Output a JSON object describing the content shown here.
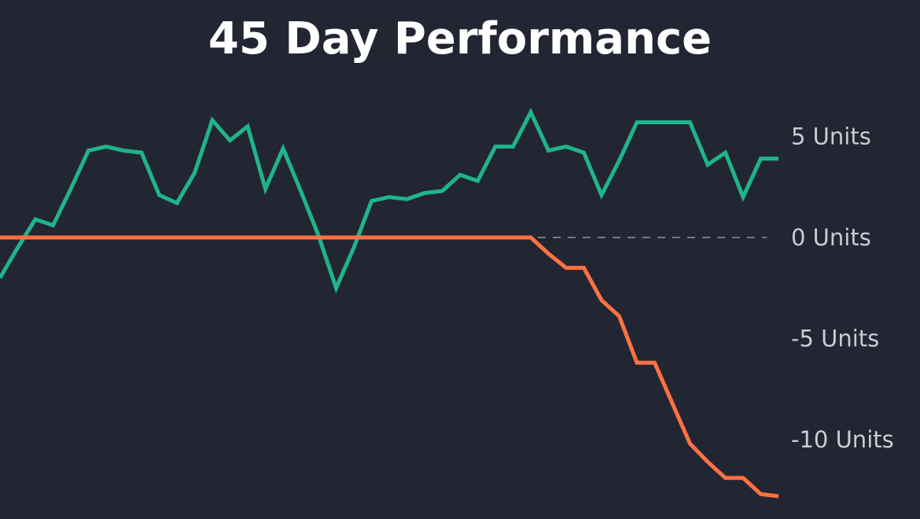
{
  "chart_data": {
    "type": "line",
    "title": "45 Day Performance",
    "xlabel": "",
    "ylabel": "",
    "xlim": [
      1,
      45
    ],
    "ylim": [
      -12.5,
      6.5
    ],
    "y_ticks": [
      {
        "value": 5,
        "label": "5 Units"
      },
      {
        "value": 0,
        "label": "0 Units"
      },
      {
        "value": -5,
        "label": "-5 Units"
      },
      {
        "value": -10,
        "label": "-10 Units"
      }
    ],
    "reference_line": {
      "y": 0,
      "style": "dashed"
    },
    "grid": false,
    "legend": "none",
    "x": [
      1,
      2,
      3,
      4,
      5,
      6,
      7,
      8,
      9,
      10,
      11,
      12,
      13,
      14,
      15,
      16,
      17,
      18,
      19,
      20,
      21,
      22,
      23,
      24,
      25,
      26,
      27,
      28,
      29,
      30,
      31,
      32,
      33,
      34,
      35,
      36,
      37,
      38,
      39,
      40,
      41,
      42,
      43,
      44,
      45
    ],
    "series": [
      {
        "color": "#20b38c",
        "values": [
          -2.0,
          -0.5,
          0.9,
          0.6,
          2.4,
          4.3,
          4.5,
          4.3,
          4.2,
          2.1,
          1.7,
          3.2,
          5.8,
          4.8,
          5.5,
          2.4,
          4.4,
          2.3,
          0.1,
          -2.5,
          -0.5,
          1.8,
          2.0,
          1.9,
          2.2,
          2.3,
          3.1,
          2.8,
          4.5,
          4.5,
          6.2,
          4.3,
          4.5,
          4.2,
          2.1,
          3.8,
          5.7,
          5.7,
          5.7,
          5.7,
          3.6,
          4.2,
          2.0,
          3.9,
          3.9
        ]
      },
      {
        "color": "#ff7142",
        "values": [
          0,
          0,
          0,
          0,
          0,
          0,
          0,
          0,
          0,
          0,
          0,
          0,
          0,
          0,
          0,
          0,
          0,
          0,
          0,
          0,
          0,
          0,
          0,
          0,
          0,
          0,
          0,
          0,
          0,
          0,
          0,
          -0.8,
          -1.5,
          -1.5,
          -3.1,
          -3.9,
          -6.2,
          -6.2,
          -8.2,
          -10.2,
          -11.1,
          -11.9,
          -11.9,
          -12.7,
          -12.8
        ]
      }
    ]
  }
}
